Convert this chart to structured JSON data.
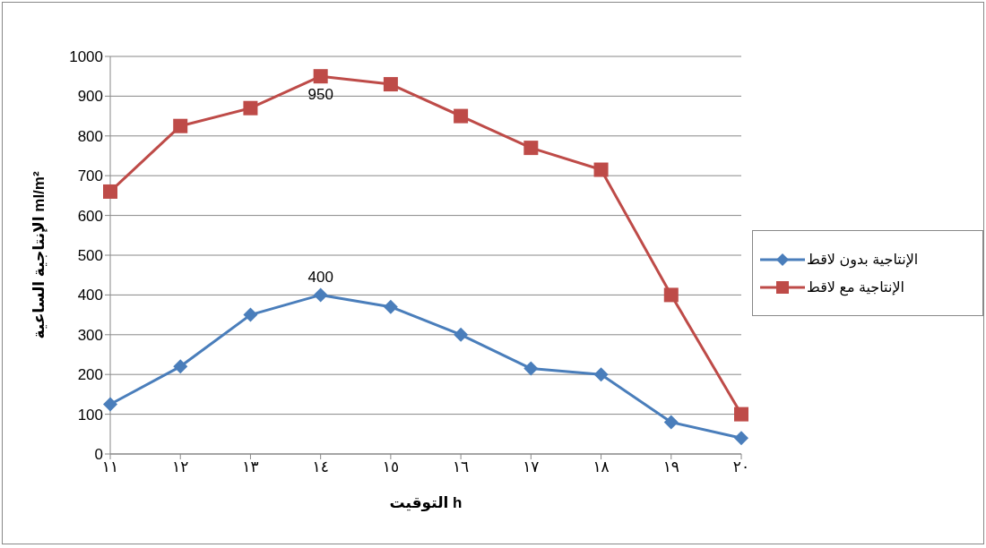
{
  "chart_data": {
    "type": "line",
    "xlabel": "التوقيت h",
    "ylabel": "الإنتاجية الساعية ml/m²",
    "categories": [
      "١١",
      "١٢",
      "١٣",
      "١٤",
      "١٥",
      "١٦",
      "١٧",
      "١٨",
      "١٩",
      "٢٠"
    ],
    "series": [
      {
        "name": "الإنتاجية بدون لاقط",
        "color": "#4a7ebb",
        "marker": "diamond",
        "values": [
          125,
          220,
          350,
          400,
          370,
          300,
          215,
          200,
          80,
          40
        ]
      },
      {
        "name": "الإنتاجية مع لاقط",
        "color": "#be4b48",
        "marker": "square",
        "values": [
          660,
          825,
          870,
          950,
          930,
          850,
          770,
          715,
          400,
          100
        ]
      }
    ],
    "ylim": [
      0,
      1000
    ],
    "yticks": [
      0,
      100,
      200,
      300,
      400,
      500,
      600,
      700,
      800,
      900,
      1000
    ],
    "grid": "y",
    "legend": "right",
    "annotations": [
      {
        "text": "950",
        "x": "١٤",
        "y": 950
      },
      {
        "text": "400",
        "x": "١٤",
        "y": 400
      }
    ]
  }
}
